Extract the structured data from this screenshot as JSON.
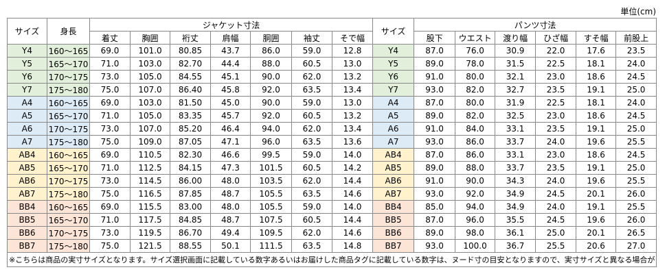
{
  "unit": "単位(cm)",
  "table": {
    "headers": {
      "size": "サイズ",
      "height": "身長",
      "jacket": "ジャケット寸法",
      "jacket_cols": [
        "着丈",
        "胸囲",
        "裄丈",
        "肩幅",
        "胴囲",
        "袖丈",
        "そで幅"
      ],
      "size2": "サイズ",
      "pants": "パンツ寸法",
      "pants_cols": [
        "股下",
        "ウエスト",
        "渡り幅",
        "ひざ幅",
        "すそ幅",
        "前股上"
      ]
    },
    "rows": [
      {
        "size": "Y4",
        "height": "160～165",
        "jacket": [
          "69.0",
          "101.0",
          "80.85",
          "43.7",
          "86.0",
          "59.0",
          "12.8"
        ],
        "pants": [
          "87.0",
          "76.0",
          "30.9",
          "22.0",
          "17.6",
          "23.5"
        ]
      },
      {
        "size": "Y5",
        "height": "165～170",
        "jacket": [
          "71.0",
          "103.0",
          "82.70",
          "44.4",
          "88.0",
          "60.5",
          "13.0"
        ],
        "pants": [
          "89.0",
          "78.0",
          "31.5",
          "22.5",
          "18.1",
          "24.0"
        ]
      },
      {
        "size": "Y6",
        "height": "170～175",
        "jacket": [
          "73.0",
          "105.0",
          "84.55",
          "45.1",
          "90.0",
          "62.0",
          "13.2"
        ],
        "pants": [
          "91.0",
          "80.0",
          "32.1",
          "23.0",
          "18.6",
          "24.5"
        ]
      },
      {
        "size": "Y7",
        "height": "175～180",
        "jacket": [
          "75.0",
          "107.0",
          "86.40",
          "45.8",
          "92.0",
          "63.5",
          "13.4"
        ],
        "pants": [
          "93.0",
          "82.0",
          "32.7",
          "23.5",
          "19.1",
          "25.0"
        ]
      },
      {
        "size": "A4",
        "height": "160～165",
        "jacket": [
          "69.0",
          "103.0",
          "81.50",
          "45.0",
          "90.0",
          "59.0",
          "13.0"
        ],
        "pants": [
          "87.0",
          "80.0",
          "31.9",
          "22.5",
          "18.1",
          "24.0"
        ]
      },
      {
        "size": "A5",
        "height": "165～170",
        "jacket": [
          "71.0",
          "105.0",
          "83.35",
          "45.7",
          "92.0",
          "60.5",
          "13.2"
        ],
        "pants": [
          "89.0",
          "82.0",
          "32.5",
          "23.0",
          "18.6",
          "24.5"
        ]
      },
      {
        "size": "A6",
        "height": "170～175",
        "jacket": [
          "73.0",
          "107.0",
          "85.20",
          "46.4",
          "94.0",
          "62.0",
          "13.4"
        ],
        "pants": [
          "91.0",
          "84.0",
          "33.1",
          "23.5",
          "19.1",
          "25.0"
        ]
      },
      {
        "size": "A7",
        "height": "175～180",
        "jacket": [
          "75.0",
          "109.0",
          "87.05",
          "47.1",
          "96.0",
          "63.5",
          "13.6"
        ],
        "pants": [
          "93.0",
          "86.0",
          "33.7",
          "24.0",
          "19.6",
          "25.5"
        ]
      },
      {
        "size": "AB4",
        "height": "160～165",
        "jacket": [
          "69.0",
          "110.5",
          "82.30",
          "46.6",
          "99.5",
          "59.0",
          "14.0"
        ],
        "pants": [
          "87.0",
          "86.0",
          "33.1",
          "23.0",
          "18.6",
          "24.5"
        ]
      },
      {
        "size": "AB5",
        "height": "165～170",
        "jacket": [
          "71.0",
          "112.5",
          "84.15",
          "47.3",
          "101.5",
          "60.5",
          "14.2"
        ],
        "pants": [
          "89.0",
          "88.0",
          "33.7",
          "23.5",
          "19.1",
          "25.0"
        ]
      },
      {
        "size": "AB6",
        "height": "170～175",
        "jacket": [
          "73.0",
          "114.5",
          "86.00",
          "48.0",
          "103.5",
          "62.0",
          "14.4"
        ],
        "pants": [
          "91.0",
          "90.0",
          "34.3",
          "24.0",
          "19.6",
          "25.5"
        ]
      },
      {
        "size": "AB7",
        "height": "175～180",
        "jacket": [
          "75.0",
          "116.5",
          "87.85",
          "48.7",
          "105.5",
          "63.5",
          "14.6"
        ],
        "pants": [
          "93.0",
          "92.0",
          "34.9",
          "24.5",
          "20.1",
          "26.0"
        ]
      },
      {
        "size": "BB4",
        "height": "160～165",
        "jacket": [
          "69.0",
          "115.5",
          "83.00",
          "48.0",
          "105.5",
          "59.0",
          "14.0"
        ],
        "pants": [
          "85.0",
          "94.0",
          "34.9",
          "24.0",
          "19.1",
          "25.5"
        ]
      },
      {
        "size": "BB5",
        "height": "165～170",
        "jacket": [
          "71.0",
          "117.5",
          "84.85",
          "48.7",
          "107.5",
          "60.5",
          "14.4"
        ],
        "pants": [
          "87.0",
          "96.0",
          "35.5",
          "24.5",
          "19.6",
          "26.0"
        ]
      },
      {
        "size": "BB6",
        "height": "170～175",
        "jacket": [
          "73.0",
          "119.5",
          "86.70",
          "49.4",
          "109.5",
          "62.0",
          "14.6"
        ],
        "pants": [
          "89.0",
          "98.0",
          "36.1",
          "25.0",
          "20.1",
          "26.5"
        ]
      },
      {
        "size": "BB7",
        "height": "175～180",
        "jacket": [
          "75.0",
          "121.5",
          "88.55",
          "50.1",
          "111.5",
          "63.5",
          "14.8"
        ],
        "pants": [
          "93.0",
          "100.0",
          "36.7",
          "25.5",
          "20.6",
          "27.0"
        ]
      }
    ],
    "note": "※こちらは商品の実寸サイズとなります。サイズ選択画面に記載している数字あるいはお届けした商品タグに記載している数字は、ヌード寸の目安となりますので、実寸サイズと異なる場合がございます。"
  }
}
